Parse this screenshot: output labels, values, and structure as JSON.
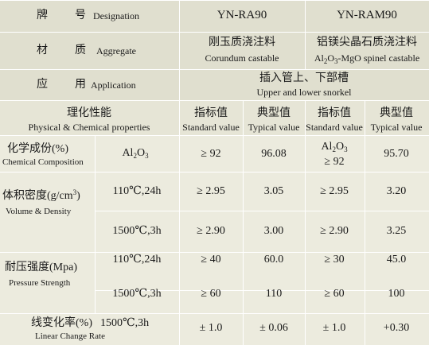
{
  "header_rows": {
    "designation": {
      "zh1": "牌",
      "zh2": "号",
      "en": "Designation",
      "products": [
        "YN-RA90",
        "YN-RAM90"
      ]
    },
    "aggregate": {
      "zh1": "材",
      "zh2": "质",
      "en": "Aggregate",
      "p1_zh": "刚玉质浇注料",
      "p1_en": "Corundum castable",
      "p2_zh": "铝镁尖晶石质浇注料",
      "p2_en_pre": "Al",
      "p2_en_sub1": "2",
      "p2_en_mid": "O",
      "p2_en_sub2": "3",
      "p2_en_post": "-MgO spinel castable"
    },
    "application": {
      "zh1": "应",
      "zh2": "用",
      "en": "Application",
      "zh_val": "插入管上、下部槽",
      "en_val": "Upper and lower snorkel"
    }
  },
  "props_header": {
    "zh": "理化性能",
    "en": "Physical & Chemical properties",
    "standard_zh": "指标值",
    "standard_en": "Standard value",
    "typical_zh": "典型值",
    "typical_en": "Typical value"
  },
  "rows": {
    "chem": {
      "zh": "化学成份(%)",
      "en": "Chemical Composition",
      "cond_pre": "Al",
      "cond_sub1": "2",
      "cond_mid": "O",
      "cond_sub2": "3",
      "v1": "≥ 92",
      "v2": "96.08",
      "v3_pre": "Al",
      "v3_sub1": "2",
      "v3_mid": "O",
      "v3_sub2": "3",
      "v3_line2": "≥ 92",
      "v4": "95.70"
    },
    "density": {
      "zh_pre": "体积密度(g/cm",
      "zh_sup": "3",
      "zh_post": ")",
      "en": "Volume & Density",
      "rows": [
        {
          "cond": "110℃,24h",
          "v1": "≥ 2.95",
          "v2": "3.05",
          "v3": "≥ 2.95",
          "v4": "3.20"
        },
        {
          "cond": "1500℃,3h",
          "v1": "≥ 2.90",
          "v2": "3.00",
          "v3": "≥ 2.90",
          "v4": "3.25"
        }
      ]
    },
    "strength": {
      "zh": "耐压强度(Mpa)",
      "en": "Pressure Strength",
      "rows": [
        {
          "cond": "110℃,24h",
          "v1": "≥ 40",
          "v2": "60.0",
          "v3": "≥ 30",
          "v4": "45.0"
        },
        {
          "cond": "1500℃,3h",
          "v1": "≥ 60",
          "v2": "110",
          "v3": "≥ 60",
          "v4": "100"
        }
      ]
    },
    "linear": {
      "zh": "线变化率(%)",
      "cond": "1500℃,3h",
      "en": "Linear Change Rate",
      "v1": "± 1.0",
      "v2": "± 0.06",
      "v3": "± 1.0",
      "v4": "+0.30"
    }
  },
  "colors": {
    "header_bg": "#e0dfcf",
    "body_bg": "#ecebde",
    "grid": "#ffffff",
    "text": "#1a1a1a"
  }
}
